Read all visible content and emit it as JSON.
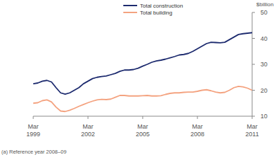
{
  "chart_data": {
    "type": "line",
    "y_label": "$billion",
    "annotation": "(a) Reference year 2008–09",
    "legend": "top",
    "grid": false,
    "categories": [
      "Mar 1999",
      null,
      null,
      null,
      null,
      null,
      null,
      null,
      null,
      null,
      null,
      null,
      "Mar 2002",
      null,
      null,
      null,
      null,
      null,
      null,
      null,
      null,
      null,
      null,
      null,
      "Mar 2005",
      null,
      null,
      null,
      null,
      null,
      null,
      null,
      null,
      null,
      null,
      null,
      "Mar 2008",
      null,
      null,
      null,
      null,
      null,
      null,
      null,
      null,
      null,
      null,
      null,
      "Mar 2011"
    ],
    "ylim": [
      10,
      50
    ],
    "yticks": [
      10,
      20,
      30,
      40,
      50
    ],
    "series": [
      {
        "name": "Total construction",
        "color": "#1c2a6e",
        "values": [
          22.5,
          22.8,
          23.5,
          23.8,
          23.2,
          21,
          19,
          18.5,
          19,
          20,
          21,
          22.5,
          23.5,
          24.5,
          25,
          25.3,
          25.5,
          26,
          26.5,
          27.3,
          27.8,
          27.8,
          28,
          28.5,
          29.3,
          30,
          30.8,
          31.3,
          31.6,
          32,
          32.5,
          33,
          33.6,
          33.8,
          34.2,
          35,
          36,
          37,
          38,
          38.5,
          38.4,
          38.3,
          38.5,
          39.5,
          40.5,
          41.5,
          41.8,
          42,
          42.2
        ]
      },
      {
        "name": "Total building",
        "color": "#f4a27f",
        "values": [
          15,
          15.2,
          16,
          16.3,
          15.5,
          13.5,
          12,
          11.8,
          12.3,
          13,
          13.8,
          14.5,
          15.2,
          15.8,
          16.3,
          16.5,
          16.4,
          16.6,
          17.3,
          18,
          18,
          17.8,
          17.8,
          17.8,
          17.9,
          18,
          17.8,
          17.8,
          17.9,
          18.4,
          18.8,
          19,
          19,
          19.2,
          19.3,
          19.3,
          19.6,
          20,
          20.2,
          19.8,
          19.3,
          19,
          19.2,
          20,
          21,
          21.5,
          21.3,
          20.8,
          20
        ]
      }
    ]
  }
}
